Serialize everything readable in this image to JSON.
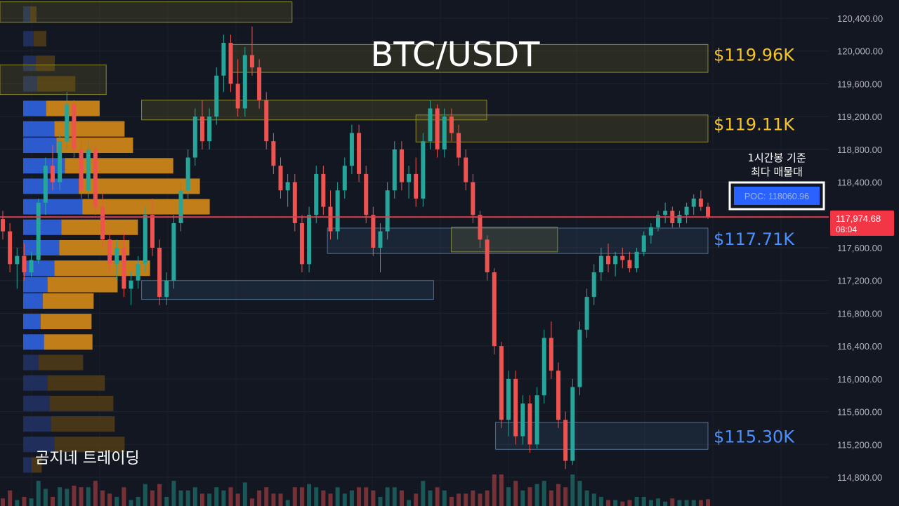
{
  "chart_data": {
    "type": "candlestick",
    "title": "BTC/USDT",
    "watermark": "곰지네 트레이딩",
    "y_ticks": [
      "120,400.00",
      "120,000.00",
      "119,600.00",
      "119,200.00",
      "118,800.00",
      "118,400.00",
      "117,600.00",
      "117,200.00",
      "116,800.00",
      "116,400.00",
      "116,000.00",
      "115,600.00",
      "115,200.00",
      "114,800.00"
    ],
    "ylim": [
      114600,
      120600
    ],
    "current_price": {
      "price": "117,974.68",
      "countdown": "08:04",
      "value": 117974.68,
      "color": "#f23645"
    },
    "poc": {
      "label": "POC: 118060.96",
      "value": 118060.96,
      "note_line1": "1시간봉 기준",
      "note_line2": "최다 매물대"
    },
    "levels": [
      {
        "label": "$119.96K",
        "value": 119960,
        "color": "#f7c325"
      },
      {
        "label": "$119.11K",
        "value": 119110,
        "color": "#f7c325"
      },
      {
        "label": "$117.71K",
        "value": 117710,
        "color": "#4a90ff"
      },
      {
        "label": "$115.30K",
        "value": 115300,
        "color": "#4a90ff"
      }
    ],
    "zones": [
      {
        "kind": "supply",
        "x0": 0,
        "x1": 0.33,
        "top": 120600,
        "bottom": 120350
      },
      {
        "kind": "supply",
        "x0": 0.26,
        "x1": 0.8,
        "top": 120080,
        "bottom": 119740
      },
      {
        "kind": "supply",
        "x0": 0,
        "x1": 0.12,
        "top": 119830,
        "bottom": 119470
      },
      {
        "kind": "supply",
        "x0": 0.16,
        "x1": 0.55,
        "top": 119400,
        "bottom": 119160
      },
      {
        "kind": "supply",
        "x0": 0.47,
        "x1": 0.8,
        "top": 119220,
        "bottom": 118890
      },
      {
        "kind": "supply",
        "x0": 0.51,
        "x1": 0.63,
        "top": 117850,
        "bottom": 117550
      },
      {
        "kind": "demand",
        "x0": 0.37,
        "x1": 0.8,
        "top": 117840,
        "bottom": 117530
      },
      {
        "kind": "demand",
        "x0": 0.16,
        "x1": 0.49,
        "top": 117200,
        "bottom": 116970
      },
      {
        "kind": "demand",
        "x0": 0.56,
        "x1": 0.8,
        "top": 115470,
        "bottom": 115140
      }
    ],
    "volume_profile": [
      {
        "p": 120450,
        "buy": 0.1,
        "sell": 0.05
      },
      {
        "p": 120150,
        "buy": 0.15,
        "sell": 0.1
      },
      {
        "p": 119850,
        "buy": 0.18,
        "sell": 0.15
      },
      {
        "p": 119600,
        "buy": 0.2,
        "sell": 0.3
      },
      {
        "p": 119300,
        "buy": 0.33,
        "sell": 0.42
      },
      {
        "p": 119050,
        "buy": 0.45,
        "sell": 0.55
      },
      {
        "p": 118850,
        "buy": 0.48,
        "sell": 0.6
      },
      {
        "p": 118600,
        "buy": 0.6,
        "sell": 0.85
      },
      {
        "p": 118350,
        "buy": 0.8,
        "sell": 0.95
      },
      {
        "p": 118100,
        "buy": 0.85,
        "sell": 1.0
      },
      {
        "p": 117850,
        "buy": 0.55,
        "sell": 0.6
      },
      {
        "p": 117600,
        "buy": 0.52,
        "sell": 0.55
      },
      {
        "p": 117350,
        "buy": 0.45,
        "sell": 0.75
      },
      {
        "p": 117150,
        "buy": 0.35,
        "sell": 0.55
      },
      {
        "p": 116950,
        "buy": 0.28,
        "sell": 0.4
      },
      {
        "p": 116700,
        "buy": 0.25,
        "sell": 0.4
      },
      {
        "p": 116450,
        "buy": 0.3,
        "sell": 0.38
      },
      {
        "p": 116200,
        "buy": 0.22,
        "sell": 0.35
      },
      {
        "p": 115950,
        "buy": 0.35,
        "sell": 0.45
      },
      {
        "p": 115700,
        "buy": 0.38,
        "sell": 0.5
      },
      {
        "p": 115450,
        "buy": 0.4,
        "sell": 0.5
      },
      {
        "p": 115200,
        "buy": 0.45,
        "sell": 0.55
      },
      {
        "p": 114950,
        "buy": 0.12,
        "sell": 0.08
      }
    ],
    "candles": [
      [
        117950,
        118050,
        117700,
        117800
      ],
      [
        117800,
        117900,
        117300,
        117400
      ],
      [
        117400,
        117600,
        117100,
        117500
      ],
      [
        117500,
        117650,
        117200,
        117300
      ],
      [
        117300,
        117550,
        117250,
        117450
      ],
      [
        117450,
        118200,
        117400,
        118150
      ],
      [
        118150,
        118700,
        118000,
        118600
      ],
      [
        118600,
        118850,
        118300,
        118400
      ],
      [
        118400,
        119000,
        118300,
        118900
      ],
      [
        118900,
        119500,
        118800,
        119350
      ],
      [
        119350,
        119400,
        118700,
        118800
      ],
      [
        118800,
        118900,
        118200,
        118300
      ],
      [
        118300,
        118900,
        118200,
        118800
      ],
      [
        118800,
        118850,
        118000,
        118100
      ],
      [
        118100,
        118300,
        117600,
        117700
      ],
      [
        117700,
        117800,
        117300,
        117400
      ],
      [
        117400,
        117700,
        117200,
        117600
      ],
      [
        117600,
        117800,
        117000,
        117100
      ],
      [
        117100,
        117300,
        116900,
        117200
      ],
      [
        117200,
        117500,
        117100,
        117400
      ],
      [
        117400,
        118100,
        117300,
        118000
      ],
      [
        118000,
        118200,
        117500,
        117600
      ],
      [
        117600,
        117700,
        116900,
        117000
      ],
      [
        117000,
        117300,
        116900,
        117200
      ],
      [
        117200,
        118000,
        117100,
        117900
      ],
      [
        117900,
        118400,
        117800,
        118300
      ],
      [
        118300,
        118800,
        118200,
        118700
      ],
      [
        118700,
        119300,
        118600,
        119200
      ],
      [
        119200,
        119400,
        118800,
        118900
      ],
      [
        118900,
        119300,
        118800,
        119200
      ],
      [
        119200,
        119800,
        119100,
        119700
      ],
      [
        119700,
        120200,
        119500,
        120100
      ],
      [
        120100,
        120200,
        119500,
        119600
      ],
      [
        119600,
        119900,
        119200,
        119300
      ],
      [
        119300,
        120050,
        119200,
        119950
      ],
      [
        119950,
        120300,
        119700,
        119800
      ],
      [
        119800,
        119900,
        119300,
        119400
      ],
      [
        119400,
        119500,
        118800,
        118900
      ],
      [
        118900,
        119000,
        118500,
        118600
      ],
      [
        118600,
        118700,
        118200,
        118300
      ],
      [
        118300,
        118500,
        118100,
        118400
      ],
      [
        118400,
        118500,
        117800,
        117900
      ],
      [
        117900,
        118000,
        117300,
        117400
      ],
      [
        117400,
        118100,
        117300,
        118000
      ],
      [
        118000,
        118600,
        117900,
        118500
      ],
      [
        118500,
        118600,
        118000,
        118100
      ],
      [
        118100,
        118300,
        117700,
        117800
      ],
      [
        117800,
        118400,
        117700,
        118300
      ],
      [
        118300,
        118700,
        118200,
        118600
      ],
      [
        118600,
        119100,
        118500,
        119000
      ],
      [
        119000,
        119100,
        118400,
        118500
      ],
      [
        118500,
        118600,
        117900,
        118000
      ],
      [
        118000,
        118100,
        117500,
        117600
      ],
      [
        117600,
        117900,
        117300,
        117800
      ],
      [
        117800,
        118400,
        117700,
        118300
      ],
      [
        118300,
        118900,
        118200,
        118800
      ],
      [
        118800,
        118900,
        118300,
        118400
      ],
      [
        118400,
        118600,
        118200,
        118500
      ],
      [
        118500,
        118700,
        118100,
        118200
      ],
      [
        118200,
        119000,
        118100,
        118900
      ],
      [
        118900,
        119400,
        118800,
        119300
      ],
      [
        119300,
        119350,
        118700,
        118800
      ],
      [
        118800,
        119300,
        118700,
        119200
      ],
      [
        119200,
        119300,
        118900,
        119000
      ],
      [
        119000,
        119100,
        118600,
        118700
      ],
      [
        118700,
        118800,
        118300,
        118400
      ],
      [
        118400,
        118500,
        117900,
        118000
      ],
      [
        118000,
        118050,
        117600,
        117700
      ],
      [
        117700,
        117750,
        117200,
        117300
      ],
      [
        117300,
        117350,
        116300,
        116400
      ],
      [
        116400,
        116450,
        115400,
        115500
      ],
      [
        115500,
        116100,
        115300,
        116000
      ],
      [
        116000,
        116100,
        115200,
        115300
      ],
      [
        115300,
        115800,
        115200,
        115700
      ],
      [
        115700,
        115800,
        115100,
        115200
      ],
      [
        115200,
        115900,
        115150,
        115800
      ],
      [
        115800,
        116600,
        115700,
        116500
      ],
      [
        116500,
        116700,
        116000,
        116100
      ],
      [
        116100,
        116200,
        115400,
        115500
      ],
      [
        115500,
        115600,
        114900,
        115000
      ],
      [
        115000,
        116000,
        114950,
        115900
      ],
      [
        115900,
        116700,
        115800,
        116600
      ],
      [
        116600,
        117100,
        116500,
        117000
      ],
      [
        117000,
        117400,
        116900,
        117300
      ],
      [
        117300,
        117600,
        117200,
        117500
      ],
      [
        117500,
        117650,
        117300,
        117400
      ],
      [
        117400,
        117550,
        117250,
        117500
      ],
      [
        117500,
        117600,
        117350,
        117450
      ],
      [
        117450,
        117550,
        117300,
        117350
      ],
      [
        117350,
        117600,
        117300,
        117550
      ],
      [
        117550,
        117800,
        117500,
        117750
      ],
      [
        117750,
        117900,
        117650,
        117850
      ],
      [
        117850,
        118050,
        117800,
        118000
      ],
      [
        118000,
        118150,
        117900,
        118050
      ],
      [
        118050,
        118100,
        117850,
        117900
      ],
      [
        117900,
        118050,
        117850,
        118000
      ],
      [
        118000,
        118150,
        117900,
        118100
      ],
      [
        118100,
        118250,
        118000,
        118200
      ],
      [
        118200,
        118300,
        118050,
        118100
      ],
      [
        118100,
        118150,
        117950,
        117975
      ]
    ]
  }
}
